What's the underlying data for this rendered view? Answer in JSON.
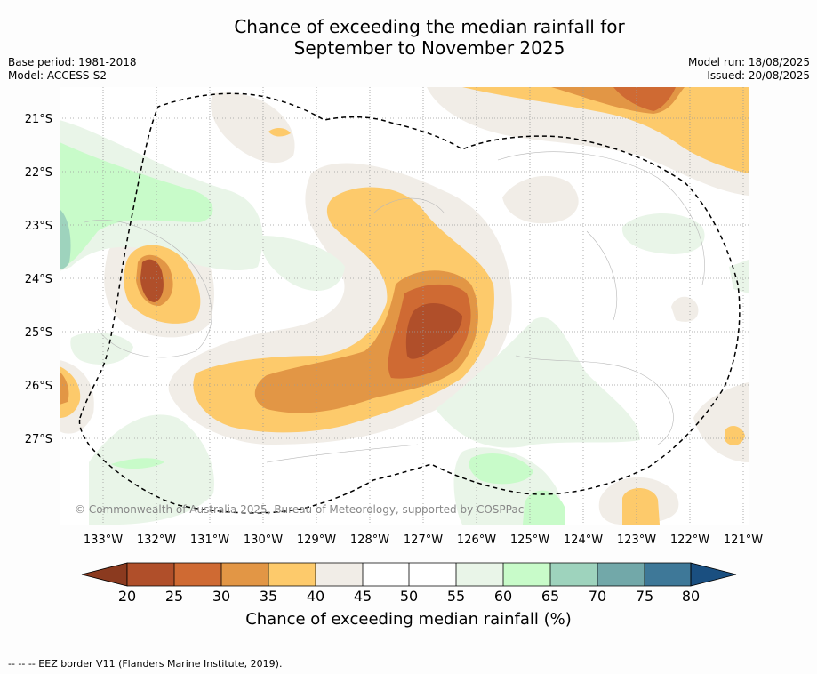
{
  "title": {
    "line1": "Chance of exceeding the median rainfall for",
    "line2": "September to November 2025"
  },
  "meta": {
    "base_period": "Base period: 1981-2018",
    "model": "Model: ACCESS-S2",
    "model_run": "Model run: 18/08/2025",
    "issued": "Issued: 20/08/2025"
  },
  "map": {
    "lat_labels": [
      "21°S",
      "22°S",
      "23°S",
      "24°S",
      "25°S",
      "26°S",
      "27°S"
    ],
    "lon_labels": [
      "133°W",
      "132°W",
      "131°W",
      "130°W",
      "129°W",
      "128°W",
      "127°W",
      "126°W",
      "125°W",
      "124°W",
      "123°W",
      "122°W",
      "121°W"
    ],
    "copyright": "© Commonwealth of Australia 2025, Bureau of Meteorology, supported by COSPPac",
    "colors": {
      "c20": "#8b3a1f",
      "c25": "#b04f2a",
      "c30": "#cf6a33",
      "c35": "#e29645",
      "c40": "#fdca6b",
      "c45": "#f1ede7",
      "c50": "#ffffff",
      "c55": "#e9f5e8",
      "c60": "#c8fbc9",
      "c65": "#9ed3bd",
      "c70": "#72a8a9",
      "c75": "#3e7898",
      "c80": "#1a4f80"
    }
  },
  "colorbar": {
    "ticks": [
      "20",
      "25",
      "30",
      "35",
      "40",
      "45",
      "50",
      "55",
      "60",
      "65",
      "70",
      "75",
      "80"
    ],
    "title": "Chance of exceeding median rainfall (%)"
  },
  "footer": "--  --  -- EEZ border V11 (Flanders Marine Institute, 2019)."
}
